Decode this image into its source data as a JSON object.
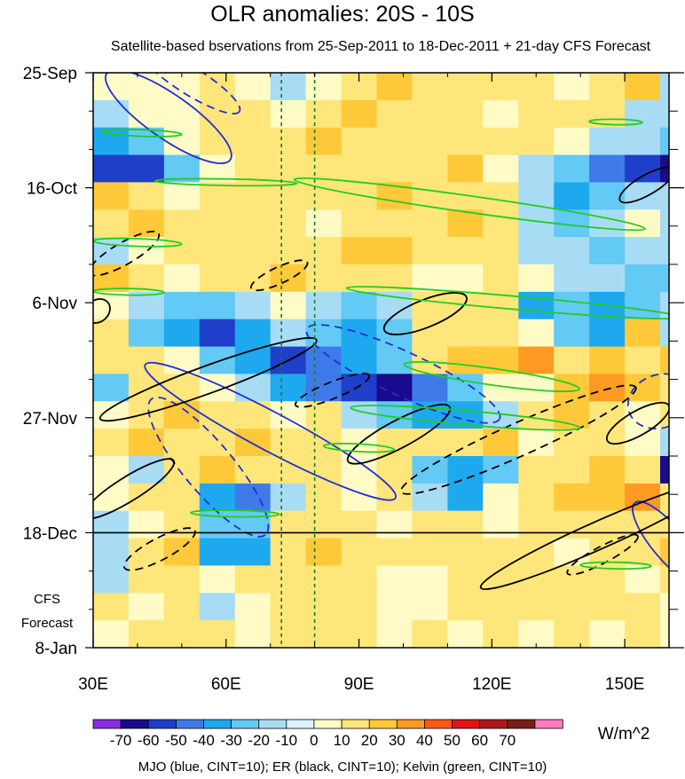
{
  "chart_data": {
    "type": "heatmap",
    "title": "OLR anomalies: 20S - 10S",
    "subtitle": "Satellite-based bservations from 25-Sep-2011 to 18-Dec-2011 + 21-day CFS Forecast",
    "x_ticks": [
      {
        "value": 30,
        "label": "30E"
      },
      {
        "value": 60,
        "label": "60E"
      },
      {
        "value": 90,
        "label": "90E"
      },
      {
        "value": 120,
        "label": "120E"
      },
      {
        "value": 150,
        "label": "150E"
      }
    ],
    "xlim": [
      30,
      160
    ],
    "y_ticks": [
      {
        "day": 0,
        "label": "25-Sep"
      },
      {
        "day": 21,
        "label": "16-Oct"
      },
      {
        "day": 42,
        "label": "6-Nov"
      },
      {
        "day": 63,
        "label": "27-Nov"
      },
      {
        "day": 84,
        "label": "18-Dec"
      },
      {
        "day": 105,
        "label": "8-Jan"
      }
    ],
    "ylim_days": [
      0,
      105
    ],
    "observation_end_day": 84,
    "forecast_label_line1": "CFS",
    "forecast_label_line2": "Forecast",
    "reference_lines_lon": [
      72.5,
      80
    ],
    "colorbar": {
      "levels": [
        "-70",
        "-60",
        "-50",
        "-40",
        "-30",
        "-20",
        "-10",
        "0",
        "10",
        "20",
        "30",
        "40",
        "50",
        "60",
        "70"
      ],
      "colors": [
        "#8a2be2",
        "#1a0a8c",
        "#1f3ec9",
        "#3f7be8",
        "#1ea9ef",
        "#63c9f5",
        "#a8dcf5",
        "#d9f5fb",
        "#fffbc6",
        "#ffe67a",
        "#ffc93a",
        "#ff9a22",
        "#ff5a13",
        "#e01515",
        "#b01818",
        "#7a1d18",
        "#ff7ac0"
      ],
      "units": "W/m^2"
    },
    "cells": {
      "lon_start": 30,
      "lon_step": 8,
      "day_start": 0,
      "day_step": 5,
      "rows": [
        [
          0,
          0,
          0,
          1,
          0,
          -1,
          0,
          1,
          2,
          1,
          1,
          1,
          1,
          0,
          1,
          2,
          -1
        ],
        [
          -1,
          0,
          0,
          1,
          1,
          0,
          1,
          2,
          1,
          1,
          1,
          0,
          1,
          1,
          1,
          -1,
          -1
        ],
        [
          -3,
          -2,
          0,
          1,
          1,
          1,
          2,
          1,
          1,
          1,
          1,
          1,
          1,
          0,
          -1,
          -1,
          -2
        ],
        [
          -5,
          -5,
          -2,
          0,
          1,
          1,
          1,
          1,
          1,
          1,
          2,
          0,
          -1,
          -2,
          -4,
          -5,
          -6
        ],
        [
          2,
          1,
          0,
          1,
          1,
          1,
          1,
          1,
          2,
          1,
          1,
          1,
          -1,
          -3,
          -2,
          -1,
          -1
        ],
        [
          1,
          2,
          1,
          1,
          1,
          1,
          0,
          1,
          1,
          1,
          2,
          1,
          -1,
          -2,
          -1,
          0,
          -1
        ],
        [
          -1,
          0,
          1,
          1,
          1,
          1,
          1,
          2,
          2,
          1,
          1,
          1,
          -1,
          -1,
          -2,
          -1,
          -1
        ],
        [
          2,
          1,
          0,
          1,
          1,
          2,
          1,
          1,
          1,
          0,
          0,
          1,
          0,
          -1,
          -1,
          -2,
          -2
        ],
        [
          0,
          -1,
          -2,
          -2,
          -1,
          0,
          -1,
          -2,
          -1,
          1,
          1,
          1,
          -3,
          -2,
          -3,
          -2,
          -1
        ],
        [
          1,
          -2,
          -3,
          -5,
          -3,
          -1,
          -2,
          -3,
          -2,
          1,
          1,
          1,
          0,
          -2,
          -3,
          2,
          -1
        ],
        [
          1,
          1,
          0,
          -2,
          -3,
          -5,
          -4,
          -3,
          -2,
          1,
          2,
          2,
          3,
          1,
          2,
          1,
          2
        ],
        [
          -2,
          1,
          1,
          0,
          -1,
          -3,
          -4,
          -5,
          -6,
          -4,
          -2,
          0,
          0,
          2,
          3,
          2,
          1
        ],
        [
          0,
          1,
          2,
          1,
          1,
          0,
          1,
          -1,
          -2,
          -3,
          -3,
          -1,
          1,
          2,
          1,
          0,
          1
        ],
        [
          1,
          2,
          1,
          1,
          2,
          1,
          1,
          0,
          1,
          1,
          1,
          2,
          0,
          1,
          1,
          0,
          -1
        ],
        [
          0,
          -1,
          1,
          2,
          1,
          1,
          1,
          0,
          1,
          -2,
          -3,
          -2,
          1,
          1,
          2,
          1,
          -6
        ],
        [
          0,
          1,
          1,
          -3,
          -4,
          -1,
          1,
          0,
          1,
          -1,
          -3,
          0,
          1,
          2,
          2,
          3,
          1
        ],
        [
          -1,
          0,
          1,
          -2,
          -2,
          1,
          1,
          1,
          0,
          1,
          1,
          0,
          1,
          1,
          1,
          1,
          1
        ],
        [
          -1,
          1,
          2,
          -3,
          -3,
          1,
          2,
          1,
          1,
          1,
          1,
          1,
          1,
          0,
          1,
          1,
          2
        ],
        [
          -1,
          1,
          1,
          0,
          1,
          1,
          1,
          1,
          0,
          0,
          1,
          1,
          1,
          1,
          1,
          0,
          1
        ],
        [
          1,
          0,
          1,
          -1,
          0,
          1,
          1,
          1,
          0,
          0,
          1,
          1,
          1,
          1,
          1,
          1,
          0
        ],
        [
          0,
          1,
          1,
          1,
          0,
          1,
          1,
          1,
          0,
          1,
          0,
          1,
          0,
          1,
          0,
          1,
          0
        ]
      ]
    },
    "series": [
      {
        "name": "MJO",
        "color": "#1f2fd6",
        "style": "solid",
        "ellipses": [
          {
            "lon": 47,
            "day": 8,
            "rx_deg": 17,
            "ry_days": 4,
            "angle": 35
          },
          {
            "lon": 70,
            "day": 65.5,
            "rx_deg": 32,
            "ry_days": 3.5,
            "angle": 28
          },
          {
            "lon": 160,
            "day": 86,
            "rx_deg": 12,
            "ry_days": 3,
            "angle": 50
          }
        ]
      },
      {
        "name": "MJO",
        "color": "#1f2fd6",
        "style": "dashed",
        "ellipses": [
          {
            "lon": 52,
            "day": 1.5,
            "rx_deg": 13,
            "ry_days": 2.5,
            "angle": 32
          },
          {
            "lon": 100,
            "day": 55,
            "rx_deg": 24,
            "ry_days": 4,
            "angle": 25
          },
          {
            "lon": 56,
            "day": 72,
            "rx_deg": 20,
            "ry_days": 4.5,
            "angle": 50
          },
          {
            "lon": 158,
            "day": 60,
            "rx_deg": 6,
            "ry_days": 6,
            "angle": 70
          }
        ]
      },
      {
        "name": "ER",
        "color": "#000000",
        "style": "solid",
        "ellipses": [
          {
            "lon": 56,
            "day": 56,
            "rx_deg": 26,
            "ry_days": 2.5,
            "angle": -20
          },
          {
            "lon": 99,
            "day": 66,
            "rx_deg": 13,
            "ry_days": 2.5,
            "angle": -28
          },
          {
            "lon": 144,
            "day": 84.5,
            "rx_deg": 29,
            "ry_days": 2.5,
            "angle": -24
          },
          {
            "lon": 105,
            "day": 44,
            "rx_deg": 10,
            "ry_days": 2.5,
            "angle": -22
          },
          {
            "lon": 38,
            "day": 76,
            "rx_deg": 12,
            "ry_days": 2.2,
            "angle": -32
          },
          {
            "lon": 155,
            "day": 20.5,
            "rx_deg": 7,
            "ry_days": 1.8,
            "angle": -30
          },
          {
            "lon": 153,
            "day": 64,
            "rx_deg": 8,
            "ry_days": 2.2,
            "angle": -30
          },
          {
            "lon": 31,
            "day": 43.5,
            "rx_deg": 3,
            "ry_days": 2,
            "angle": -40
          }
        ]
      },
      {
        "name": "ER",
        "color": "#000000",
        "style": "dashed",
        "ellipses": [
          {
            "lon": 37,
            "day": 33,
            "rx_deg": 9,
            "ry_days": 2,
            "angle": -30
          },
          {
            "lon": 72,
            "day": 37,
            "rx_deg": 7,
            "ry_days": 1.5,
            "angle": -25
          },
          {
            "lon": 84,
            "day": 58,
            "rx_deg": 9,
            "ry_days": 1.5,
            "angle": -22
          },
          {
            "lon": 126,
            "day": 67,
            "rx_deg": 29,
            "ry_days": 3,
            "angle": -24
          },
          {
            "lon": 45,
            "day": 87,
            "rx_deg": 9,
            "ry_days": 2,
            "angle": -28
          },
          {
            "lon": 145,
            "day": 88,
            "rx_deg": 9,
            "ry_days": 1.5,
            "angle": -28
          }
        ]
      },
      {
        "name": "Kelvin",
        "color": "#22cc22",
        "style": "solid",
        "ellipses": [
          {
            "lon": 60,
            "day": 20,
            "rx_deg": 16,
            "ry_days": 0.6,
            "angle": 1
          },
          {
            "lon": 115,
            "day": 24,
            "rx_deg": 40,
            "ry_days": 1.5,
            "angle": 8
          },
          {
            "lon": 40,
            "day": 31,
            "rx_deg": 10,
            "ry_days": 0.7,
            "angle": 2
          },
          {
            "lon": 125,
            "day": 42,
            "rx_deg": 38,
            "ry_days": 1.2,
            "angle": 5
          },
          {
            "lon": 120,
            "day": 55.5,
            "rx_deg": 20,
            "ry_days": 1.5,
            "angle": 8
          },
          {
            "lon": 114,
            "day": 63,
            "rx_deg": 26,
            "ry_days": 1.3,
            "angle": 5
          },
          {
            "lon": 90,
            "day": 68.5,
            "rx_deg": 8,
            "ry_days": 0.7,
            "angle": 3
          },
          {
            "lon": 62,
            "day": 80.5,
            "rx_deg": 10,
            "ry_days": 0.6,
            "angle": 1
          },
          {
            "lon": 38,
            "day": 40,
            "rx_deg": 8,
            "ry_days": 0.6,
            "angle": 1
          },
          {
            "lon": 41,
            "day": 11,
            "rx_deg": 9,
            "ry_days": 0.6,
            "angle": 2
          },
          {
            "lon": 148,
            "day": 9,
            "rx_deg": 6,
            "ry_days": 0.5,
            "angle": 1
          },
          {
            "lon": 148,
            "day": 90,
            "rx_deg": 8,
            "ry_days": 0.6,
            "angle": 1
          }
        ]
      }
    ],
    "legend_text": "MJO (blue, CINT=10); ER (black, CINT=10); Kelvin (green, CINT=10)"
  }
}
